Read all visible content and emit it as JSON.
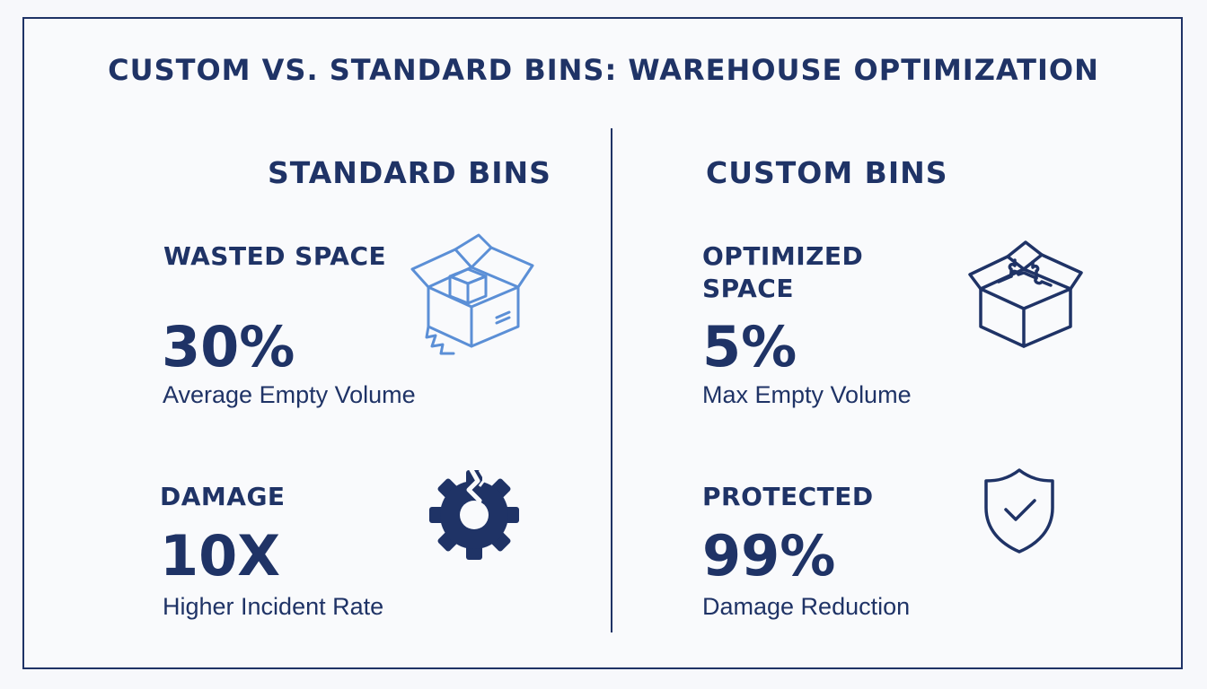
{
  "title": "CUSTOM VS. STANDARD BINS: WAREHOUSE OPTIMIZATION",
  "colors": {
    "navy": "#1f3366",
    "light_blue": "#5b8fd6",
    "background": "#f9fafc"
  },
  "standard": {
    "heading": "STANDARD BINS",
    "space": {
      "label": "WASTED SPACE",
      "value": "30%",
      "caption": "Average Empty Volume",
      "icon": "open-box-icon"
    },
    "damage": {
      "label": "DAMAGE",
      "value": "10X",
      "caption": "Higher Incident Rate",
      "icon": "broken-gear-icon"
    }
  },
  "custom": {
    "heading": "CUSTOM BINS",
    "space": {
      "label_line1": "OPTIMIZED",
      "label_line2": "SPACE",
      "value": "5%",
      "caption": "Max Empty Volume",
      "icon": "puzzle-box-icon"
    },
    "protection": {
      "label": "PROTECTED",
      "value": "99%",
      "caption": "Damage Reduction",
      "icon": "shield-check-icon"
    }
  }
}
